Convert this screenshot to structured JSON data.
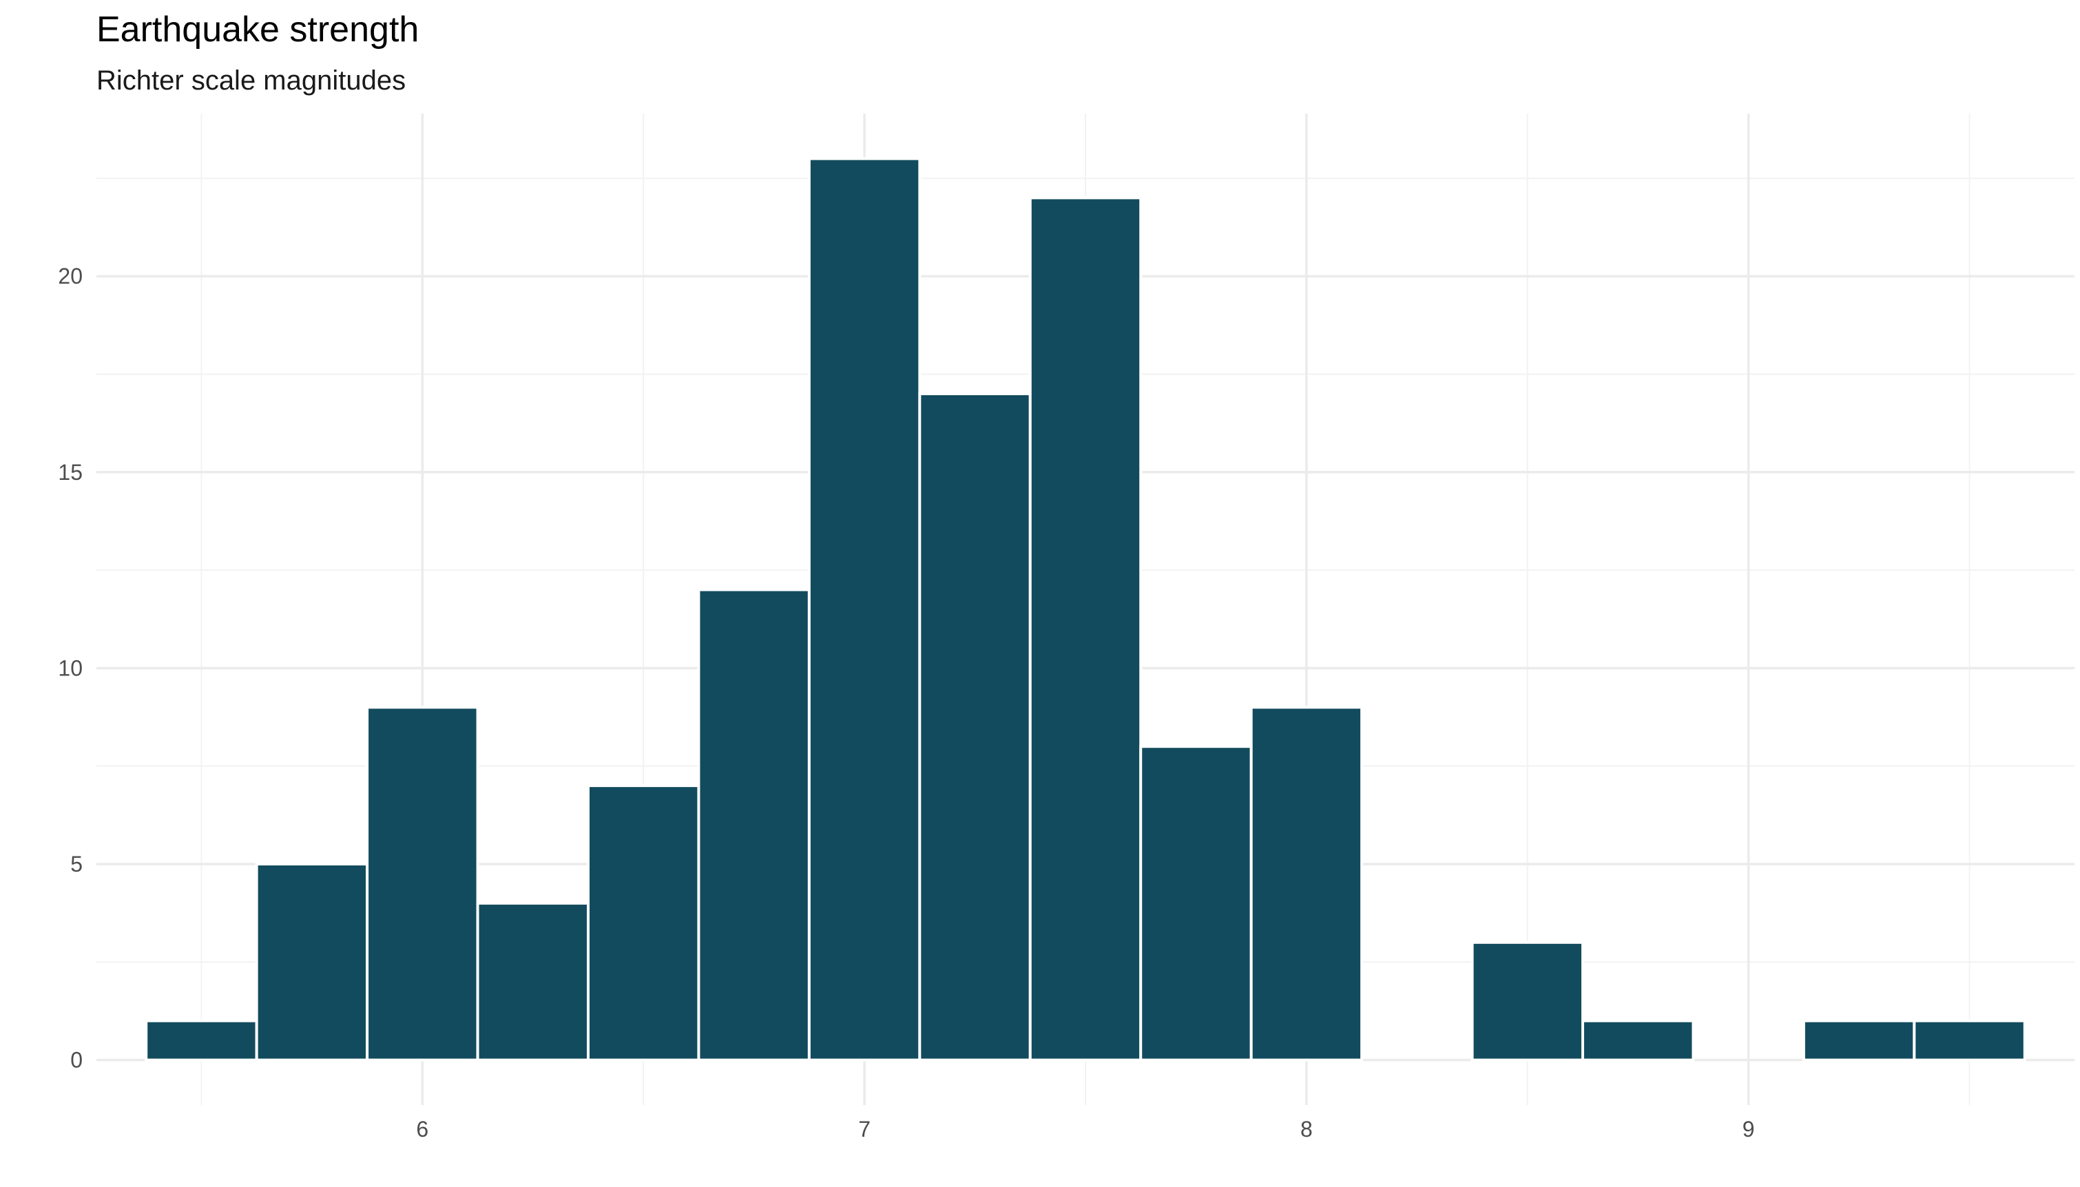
{
  "chart_data": {
    "type": "bar",
    "title": "Earthquake strength",
    "subtitle": "Richter scale magnitudes",
    "xlabel": "",
    "ylabel": "",
    "bin_width": 0.25,
    "bins": [
      {
        "x0": 5.375,
        "x1": 5.625,
        "count": 1
      },
      {
        "x0": 5.625,
        "x1": 5.875,
        "count": 5
      },
      {
        "x0": 5.875,
        "x1": 6.125,
        "count": 9
      },
      {
        "x0": 6.125,
        "x1": 6.375,
        "count": 4
      },
      {
        "x0": 6.375,
        "x1": 6.625,
        "count": 7
      },
      {
        "x0": 6.625,
        "x1": 6.875,
        "count": 12
      },
      {
        "x0": 6.875,
        "x1": 7.125,
        "count": 23
      },
      {
        "x0": 7.125,
        "x1": 7.375,
        "count": 17
      },
      {
        "x0": 7.375,
        "x1": 7.625,
        "count": 22
      },
      {
        "x0": 7.625,
        "x1": 7.875,
        "count": 8
      },
      {
        "x0": 7.875,
        "x1": 8.125,
        "count": 9
      },
      {
        "x0": 8.125,
        "x1": 8.375,
        "count": 0
      },
      {
        "x0": 8.375,
        "x1": 8.625,
        "count": 3
      },
      {
        "x0": 8.625,
        "x1": 8.875,
        "count": 1
      },
      {
        "x0": 8.875,
        "x1": 9.125,
        "count": 0
      },
      {
        "x0": 9.125,
        "x1": 9.375,
        "count": 1
      },
      {
        "x0": 9.375,
        "x1": 9.625,
        "count": 1
      }
    ],
    "xlim": [
      5.2625,
      9.7375
    ],
    "ylim": [
      -1.15,
      24.15
    ],
    "x_ticks": [
      6,
      7,
      8,
      9
    ],
    "x_tick_labels": [
      "6",
      "7",
      "8",
      "9"
    ],
    "x_minor": [
      5.5,
      6.5,
      7.5,
      8.5,
      9.5
    ],
    "y_ticks": [
      0,
      5,
      10,
      15,
      20
    ],
    "y_tick_labels": [
      "0",
      "5",
      "10",
      "15",
      "20"
    ],
    "y_minor": [
      2.5,
      7.5,
      12.5,
      17.5,
      22.5
    ],
    "grid": true,
    "legend": "none",
    "colors": {
      "bar": "#124b5d",
      "bar_outline": "#ffffff"
    }
  }
}
